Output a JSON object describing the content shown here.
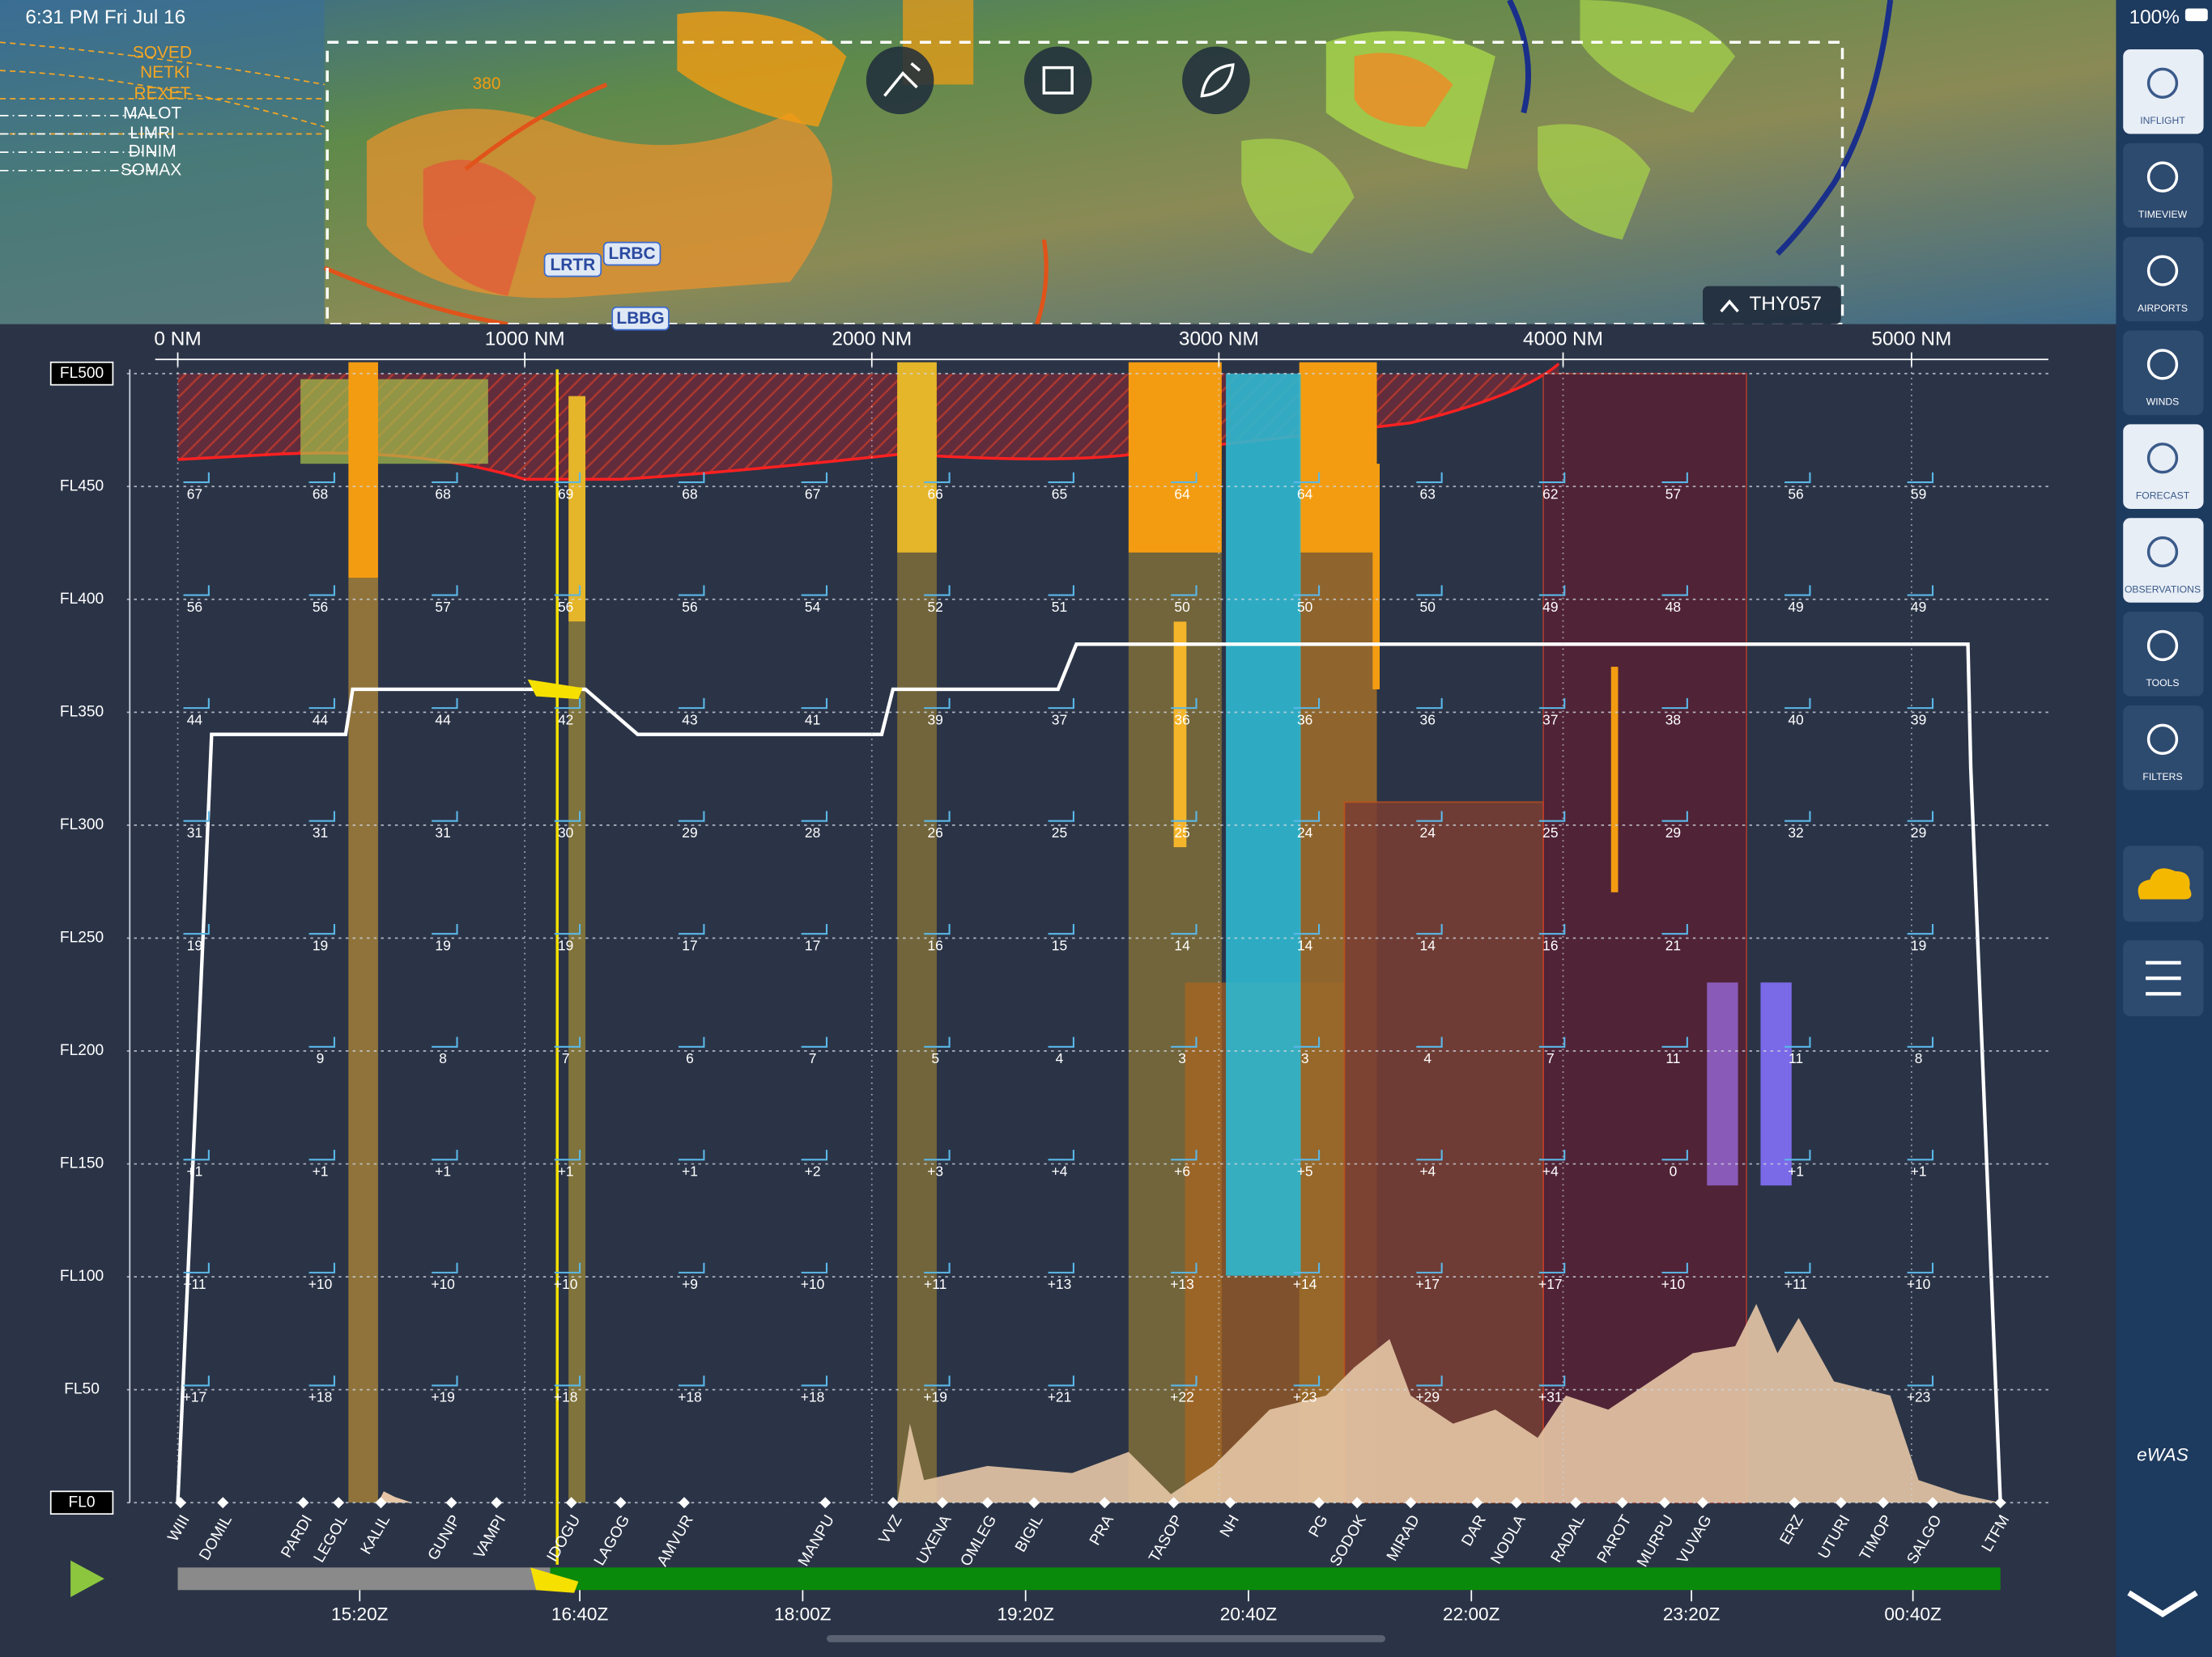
{
  "status": {
    "time": "6:31 PM  Fri Jul 16",
    "battery": "100%"
  },
  "map": {
    "route_labels": [
      "SOVED",
      "NETKI",
      "REXET",
      "MALOT",
      "LIMRI",
      "DINIM",
      "SOMAX"
    ],
    "altitude_label": "380",
    "airports": [
      "LRTR",
      "LRBC",
      "LBBG"
    ],
    "flight": "THY057"
  },
  "sidebar": [
    "INFLIGHT",
    "TIMEVIEW",
    "AIRPORTS",
    "WINDS",
    "FORECAST",
    "OBSERVATIONS",
    "TOOLS",
    "FILTERS"
  ],
  "profile": {
    "distance_ticks": [
      "0 NM",
      "1000 NM",
      "2000 NM",
      "3000 NM",
      "4000 NM",
      "5000 NM"
    ],
    "levels": [
      "FL500",
      "FL450",
      "FL400",
      "FL350",
      "FL300",
      "FL250",
      "FL200",
      "FL150",
      "FL100",
      "FL50",
      "FL0"
    ],
    "temperatures": [
      [
        "67",
        "68",
        "68",
        "69",
        "68",
        "67",
        "66",
        "65",
        "64",
        "64",
        "63",
        "62",
        "57",
        "56",
        "59"
      ],
      [
        "56",
        "56",
        "57",
        "56",
        "56",
        "54",
        "52",
        "51",
        "50",
        "50",
        "50",
        "49",
        "48",
        "49",
        "49"
      ],
      [
        "44",
        "44",
        "44",
        "42",
        "43",
        "41",
        "39",
        "37",
        "36",
        "36",
        "36",
        "37",
        "38",
        "40",
        "39"
      ],
      [
        "31",
        "31",
        "31",
        "30",
        "29",
        "28",
        "26",
        "25",
        "25",
        "24",
        "24",
        "25",
        "29",
        "32",
        "29"
      ],
      [
        "19",
        "19",
        "19",
        "19",
        "17",
        "17",
        "16",
        "15",
        "14",
        "14",
        "14",
        "16",
        "21",
        null,
        "19"
      ],
      [
        null,
        "9",
        "8",
        "7",
        "6",
        "7",
        "5",
        "4",
        "3",
        "3",
        "4",
        "7",
        "11",
        "11",
        "8"
      ],
      [
        "+1",
        "+1",
        "+1",
        "+1",
        "+1",
        "+2",
        "+3",
        "+4",
        "+6",
        "+5",
        "+4",
        "+4",
        "0",
        "+1",
        "+1"
      ],
      [
        "+11",
        "+10",
        "+10",
        "+10",
        "+9",
        "+10",
        "+11",
        "+13",
        "+13",
        "+14",
        "+17",
        "+17",
        "+10",
        "+11",
        "+10"
      ],
      [
        "+17",
        "+18",
        "+19",
        "+18",
        "+18",
        "+18",
        "+19",
        "+21",
        "+22",
        "+23",
        "+29",
        "+31",
        null,
        null,
        "+23"
      ]
    ],
    "waypoints": [
      "WIII",
      "DOMIL",
      "PARDI",
      "LEGOL",
      "KALIL",
      "GUNIP",
      "VAMPI",
      "IDOGU",
      "LAGOG",
      "AMVUR",
      "MANPU",
      "VVZ",
      "UXENA",
      "OMLEG",
      "BIGIL",
      "PRA",
      "TASOP",
      "NH",
      "PG",
      "SODOK",
      "MIRAD",
      "DAR",
      "NODLA",
      "RADAL",
      "PAROT",
      "MURPU",
      "VUVAG",
      "ERZ",
      "UTURI",
      "TIMOP",
      "SALGO",
      "LTFM"
    ],
    "time_ticks": [
      "15:20Z",
      "16:40Z",
      "18:00Z",
      "19:20Z",
      "20:40Z",
      "22:00Z",
      "23:20Z",
      "00:40Z"
    ]
  }
}
